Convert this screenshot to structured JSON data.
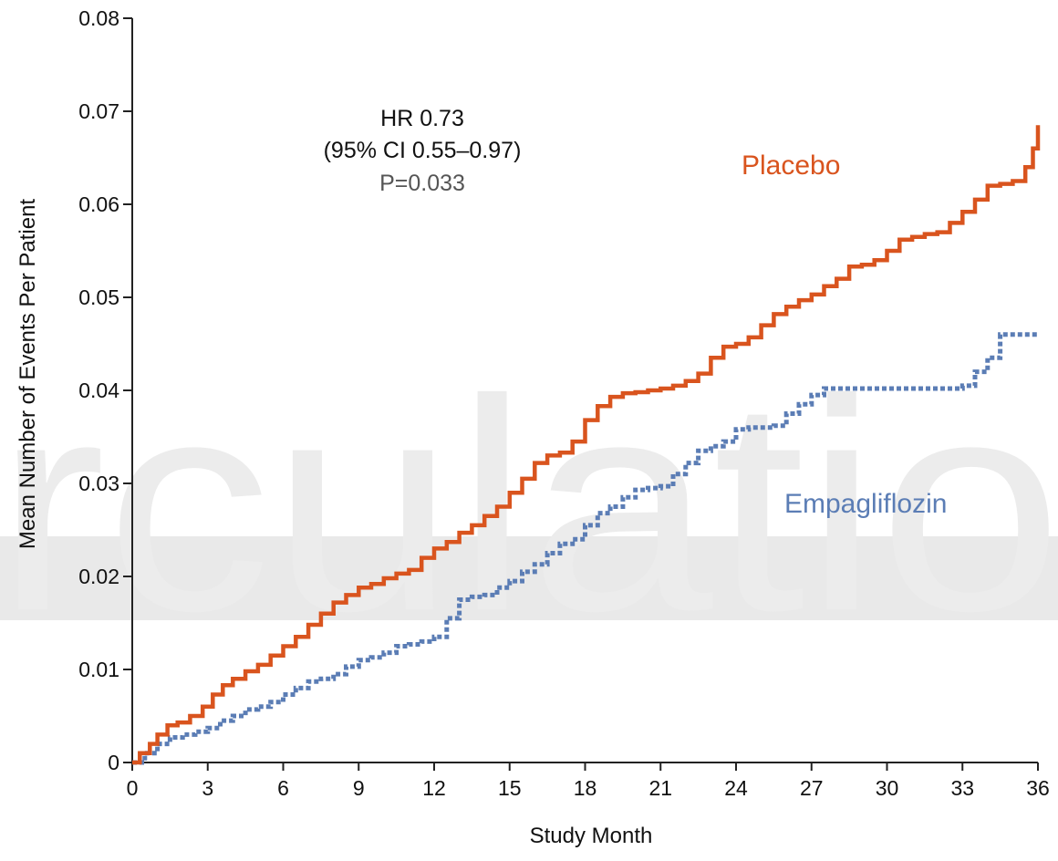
{
  "colors": {
    "placebo": "#d9541e",
    "empagliflozin": "#5b7db5",
    "axis": "#222222",
    "watermark_text": "#ececec",
    "watermark_band": "#e9e9e9",
    "annotation_dark": "#111111",
    "annotation_gray": "#555555"
  },
  "watermark": {
    "text": "rculatio"
  },
  "chart_data": {
    "type": "line",
    "xlabel": "Study Month",
    "ylabel": "Mean Number of Events Per Patient",
    "xlim": [
      0,
      36
    ],
    "ylim": [
      0,
      0.08
    ],
    "x_ticks": [
      "0",
      "3",
      "6",
      "9",
      "12",
      "15",
      "18",
      "21",
      "24",
      "27",
      "30",
      "33",
      "36"
    ],
    "y_ticks": [
      "0",
      "0.01",
      "0.02",
      "0.03",
      "0.04",
      "0.05",
      "0.06",
      "0.07",
      "0.08"
    ],
    "grid": false,
    "legend": "inline labels",
    "annotation": {
      "line1": "HR 0.73",
      "line2": "(95% CI 0.55–0.97)",
      "line3": "P=0.033"
    },
    "series": [
      {
        "name": "Placebo",
        "style": "solid step",
        "x": [
          0,
          0.3,
          0.7,
          1.0,
          1.4,
          1.8,
          2.3,
          2.8,
          3.2,
          3.6,
          4.0,
          4.5,
          5.0,
          5.5,
          6.0,
          6.5,
          7.0,
          7.5,
          8.0,
          8.5,
          9.0,
          9.5,
          10.0,
          10.5,
          11.0,
          11.5,
          12.0,
          12.5,
          13.0,
          13.5,
          14.0,
          14.5,
          15.0,
          15.5,
          16.0,
          16.5,
          17.0,
          17.5,
          18.0,
          18.5,
          19.0,
          19.5,
          20.0,
          20.5,
          21.0,
          21.5,
          22.0,
          22.5,
          23.0,
          23.5,
          24.0,
          24.5,
          25.0,
          25.5,
          26.0,
          26.5,
          27.0,
          27.5,
          28.0,
          28.5,
          29.0,
          29.5,
          30.0,
          30.5,
          31.0,
          31.5,
          32.0,
          32.5,
          33.0,
          33.5,
          34.0,
          34.5,
          35.0,
          35.5,
          35.8,
          36.0
        ],
        "y": [
          0,
          0.001,
          0.002,
          0.003,
          0.004,
          0.0043,
          0.005,
          0.006,
          0.0073,
          0.0083,
          0.009,
          0.0098,
          0.0105,
          0.0115,
          0.0125,
          0.0135,
          0.0148,
          0.016,
          0.0172,
          0.018,
          0.0188,
          0.0192,
          0.0198,
          0.0203,
          0.0207,
          0.022,
          0.023,
          0.0237,
          0.0247,
          0.0255,
          0.0265,
          0.0275,
          0.029,
          0.0305,
          0.0322,
          0.033,
          0.0333,
          0.0345,
          0.0368,
          0.0383,
          0.0393,
          0.0397,
          0.0398,
          0.04,
          0.0402,
          0.0405,
          0.041,
          0.0418,
          0.0435,
          0.0447,
          0.045,
          0.0457,
          0.047,
          0.0482,
          0.049,
          0.0497,
          0.0503,
          0.0512,
          0.052,
          0.0533,
          0.0535,
          0.054,
          0.055,
          0.0562,
          0.0565,
          0.0568,
          0.057,
          0.058,
          0.0592,
          0.0605,
          0.062,
          0.0622,
          0.0625,
          0.064,
          0.066,
          0.0685
        ]
      },
      {
        "name": "Empagliflozin",
        "style": "dotted step",
        "x": [
          0,
          0.5,
          1.0,
          1.5,
          2.0,
          2.5,
          3.0,
          3.5,
          4.0,
          4.5,
          5.0,
          5.5,
          6.0,
          6.5,
          7.0,
          7.5,
          8.0,
          8.5,
          9.0,
          9.5,
          10.0,
          10.5,
          11.0,
          11.5,
          12.0,
          12.5,
          13.0,
          13.5,
          14.0,
          14.5,
          15.0,
          15.5,
          16.0,
          16.5,
          17.0,
          17.5,
          18.0,
          18.5,
          19.0,
          19.5,
          20.0,
          20.5,
          21.0,
          21.5,
          22.0,
          22.5,
          23.0,
          23.5,
          24.0,
          24.5,
          25.0,
          25.5,
          26.0,
          26.5,
          27.0,
          27.5,
          28.0,
          29.0,
          30.0,
          31.0,
          32.0,
          33.0,
          33.5,
          34.0,
          34.5,
          35.0,
          36.0
        ],
        "y": [
          0,
          0.001,
          0.002,
          0.0027,
          0.003,
          0.0033,
          0.0037,
          0.0045,
          0.005,
          0.0057,
          0.006,
          0.0065,
          0.0073,
          0.008,
          0.0087,
          0.009,
          0.0095,
          0.0103,
          0.011,
          0.0113,
          0.0118,
          0.0125,
          0.0127,
          0.013,
          0.0135,
          0.0155,
          0.0175,
          0.0178,
          0.018,
          0.0188,
          0.0195,
          0.0205,
          0.0213,
          0.0225,
          0.0235,
          0.024,
          0.0255,
          0.0268,
          0.0275,
          0.0285,
          0.0293,
          0.0295,
          0.0297,
          0.031,
          0.0322,
          0.0335,
          0.034,
          0.0345,
          0.0358,
          0.036,
          0.036,
          0.0362,
          0.0375,
          0.0385,
          0.0395,
          0.0402,
          0.0402,
          0.0402,
          0.0402,
          0.0402,
          0.0402,
          0.0405,
          0.042,
          0.0435,
          0.046,
          0.046,
          0.046
        ]
      }
    ]
  }
}
